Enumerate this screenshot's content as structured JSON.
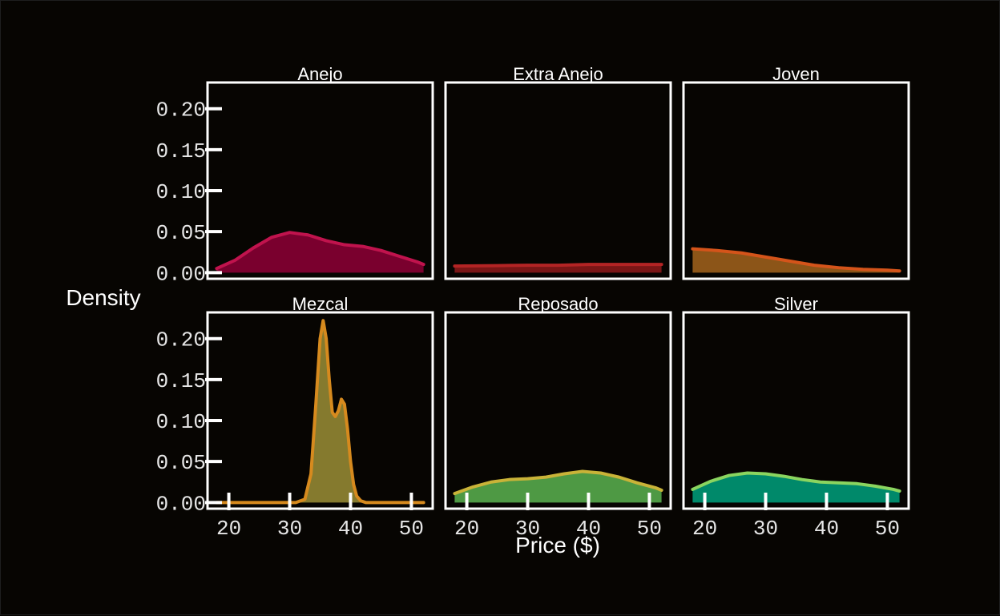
{
  "chart_data": {
    "type": "area",
    "xlabel": "Price ($)",
    "ylabel": "Density",
    "xlim": [
      16.5,
      53.5
    ],
    "ylim": [
      -0.0075,
      0.232
    ],
    "x_ticks": [
      20,
      30,
      40,
      50
    ],
    "y_ticks": [
      0,
      0.05,
      0.1,
      0.15,
      0.2
    ],
    "y_tick_labels": [
      "0.00",
      "0.05",
      "0.10",
      "0.15",
      "0.20"
    ],
    "layout": "facet 2 rows x 3 columns, fixed scales",
    "grid": false,
    "panels": [
      {
        "name": "Anejo",
        "line_color": "#c0134d",
        "fill_color": "#7a002e",
        "x": [
          18,
          21,
          24,
          27,
          30,
          33,
          36,
          39,
          42,
          45,
          48,
          51,
          52
        ],
        "y": [
          0.005,
          0.015,
          0.03,
          0.043,
          0.049,
          0.046,
          0.039,
          0.034,
          0.032,
          0.027,
          0.02,
          0.013,
          0.01
        ]
      },
      {
        "name": "Extra Anejo",
        "line_color": "#b32424",
        "fill_color": "#7a1616",
        "x": [
          18,
          25,
          30,
          35,
          40,
          45,
          52
        ],
        "y": [
          0.008,
          0.0085,
          0.009,
          0.009,
          0.01,
          0.01,
          0.01
        ]
      },
      {
        "name": "Joven",
        "line_color": "#d4541a",
        "fill_color": "#8c5518",
        "x": [
          18,
          22,
          26,
          30,
          34,
          38,
          42,
          46,
          50,
          52
        ],
        "y": [
          0.029,
          0.027,
          0.024,
          0.019,
          0.014,
          0.009,
          0.006,
          0.004,
          0.003,
          0.002
        ]
      },
      {
        "name": "Mezcal",
        "line_color": "#d68a1e",
        "fill_color": "#857a2e",
        "x": [
          18,
          28,
          31,
          32.5,
          33.5,
          34.3,
          35,
          35.5,
          36,
          36.5,
          37,
          37.5,
          38,
          38.5,
          39,
          39.5,
          40,
          40.5,
          41,
          41.7,
          42.5,
          43.5,
          45,
          52
        ],
        "y": [
          0.0,
          0.0,
          0.0,
          0.004,
          0.035,
          0.12,
          0.2,
          0.222,
          0.2,
          0.15,
          0.11,
          0.105,
          0.112,
          0.126,
          0.12,
          0.09,
          0.05,
          0.022,
          0.008,
          0.002,
          0.0,
          0.0,
          0.0,
          0.0
        ]
      },
      {
        "name": "Reposado",
        "line_color": "#c9b338",
        "fill_color": "#4e9944",
        "x": [
          18,
          21,
          24,
          27,
          30,
          33,
          36,
          39,
          42,
          45,
          48,
          51,
          52
        ],
        "y": [
          0.011,
          0.019,
          0.025,
          0.028,
          0.029,
          0.031,
          0.035,
          0.038,
          0.036,
          0.031,
          0.024,
          0.018,
          0.015
        ]
      },
      {
        "name": "Silver",
        "line_color": "#8ad55f",
        "fill_color": "#00896a",
        "x": [
          18,
          21,
          24,
          27,
          30,
          33,
          36,
          39,
          42,
          45,
          48,
          51,
          52
        ],
        "y": [
          0.016,
          0.026,
          0.033,
          0.036,
          0.035,
          0.032,
          0.028,
          0.025,
          0.024,
          0.023,
          0.02,
          0.016,
          0.014
        ]
      }
    ]
  }
}
